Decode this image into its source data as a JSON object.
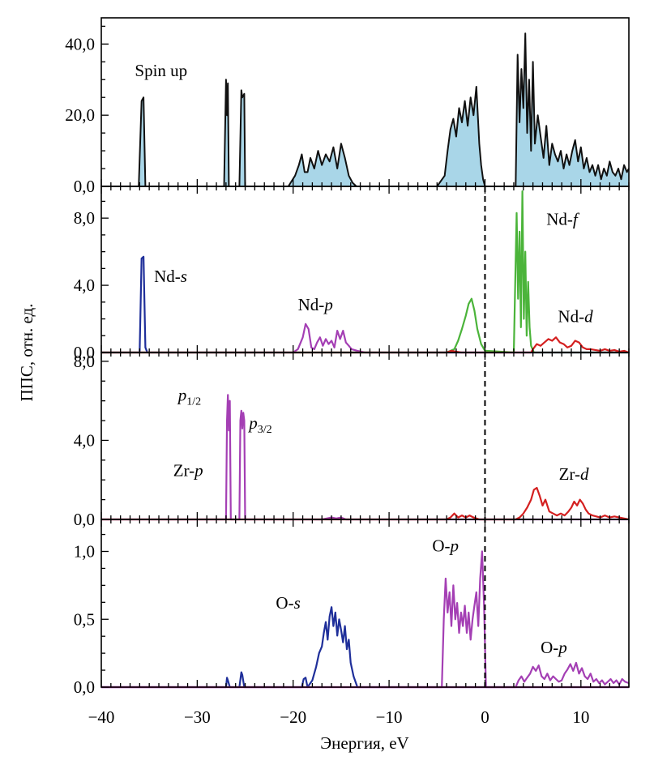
{
  "chart_data": {
    "type": "line",
    "xlabel": "Энергия, eV",
    "ylabel": "ППС, отн. ед.",
    "xlim": [
      -40,
      15
    ],
    "x_ticks": [
      -40,
      -30,
      -20,
      -10,
      0,
      10
    ],
    "x_tick_labels": [
      "−40",
      "−30",
      "−20",
      "−10",
      "0",
      "10"
    ],
    "fermi_level": 0,
    "colors": {
      "total": "#111111",
      "total_fill": "#a9d6e8",
      "s": "#1f2f9a",
      "p": "#a43fb4",
      "d": "#d42020",
      "f": "#4bb43a",
      "O-s": "#1f2f9a",
      "O-p": "#a43fb4",
      "baseline": "#d040b0"
    },
    "panels": [
      {
        "id": "total",
        "ylim": [
          0,
          46
        ],
        "y_ticks": [
          0,
          20,
          40
        ],
        "y_tick_labels": [
          "0,0",
          "20,0",
          "40,0"
        ],
        "annotations": [
          {
            "text": "Spin up",
            "x": -36.5,
            "y": 31
          }
        ],
        "series": [
          {
            "key": "total",
            "fill": true,
            "x": [
              -40,
              -36.1,
              -35.8,
              -35.6,
              -35.4,
              -35.1,
              -27.2,
              -27.0,
              -26.9,
              -26.8,
              -26.7,
              -26.5,
              -25.6,
              -25.4,
              -25.3,
              -25.1,
              -25.0,
              -24.8,
              -20.5,
              -19.8,
              -19.4,
              -19.1,
              -18.8,
              -18.5,
              -18.2,
              -17.8,
              -17.4,
              -17.0,
              -16.6,
              -16.2,
              -15.8,
              -15.4,
              -15.0,
              -14.6,
              -14.2,
              -13.8,
              -13.4,
              -13.0,
              -5.0,
              -4.2,
              -3.9,
              -3.6,
              -3.3,
              -3.0,
              -2.7,
              -2.4,
              -2.1,
              -1.8,
              -1.5,
              -1.2,
              -0.9,
              -0.6,
              -0.4,
              -0.2,
              0.0,
              0.2,
              3.2,
              3.4,
              3.6,
              3.8,
              4.0,
              4.2,
              4.4,
              4.6,
              4.8,
              5.0,
              5.2,
              5.5,
              5.8,
              6.1,
              6.4,
              6.7,
              7.0,
              7.3,
              7.6,
              7.9,
              8.2,
              8.5,
              8.8,
              9.1,
              9.4,
              9.7,
              10.0,
              10.3,
              10.6,
              10.9,
              11.2,
              11.5,
              11.8,
              12.1,
              12.4,
              12.7,
              13.0,
              13.3,
              13.6,
              13.9,
              14.2,
              14.5,
              14.8,
              15.0
            ],
            "values": [
              0,
              0,
              24,
              25,
              0,
              0,
              0,
              30,
              20,
              29,
              0,
              0,
              0,
              27,
              25,
              26,
              0,
              0,
              0,
              3,
              6,
              9,
              4,
              4,
              8,
              5,
              10,
              6,
              9,
              7,
              11,
              5,
              12,
              8,
              3,
              1,
              0,
              0,
              0,
              3,
              10,
              16,
              19,
              14,
              22,
              18,
              24,
              17,
              25,
              20,
              28,
              12,
              6,
              2,
              0,
              0,
              0,
              37,
              18,
              33,
              22,
              43,
              15,
              30,
              10,
              35,
              12,
              20,
              14,
              8,
              17,
              6,
              12,
              9,
              7,
              10,
              5,
              9,
              6,
              10,
              13,
              7,
              11,
              5,
              8,
              4,
              6,
              3,
              6,
              2,
              5,
              3,
              7,
              4,
              3,
              5,
              2,
              6,
              4,
              5
            ]
          }
        ]
      },
      {
        "id": "Nd",
        "ylim": [
          0,
          9.6
        ],
        "y_ticks": [
          0,
          4,
          8
        ],
        "y_tick_labels": [
          "0,0",
          "4,0",
          "8,0"
        ],
        "annotations": [
          {
            "parts": [
              {
                "t": "Nd-"
              },
              {
                "t": "s",
                "italic": true
              }
            ],
            "x": -34.5,
            "y": 4.2
          },
          {
            "parts": [
              {
                "t": "Nd-"
              },
              {
                "t": "p",
                "italic": true
              }
            ],
            "x": -19.5,
            "y": 2.5
          },
          {
            "parts": [
              {
                "t": "Nd-"
              },
              {
                "t": "f",
                "italic": true
              }
            ],
            "x": 6.4,
            "y": 7.6
          },
          {
            "parts": [
              {
                "t": "Nd-"
              },
              {
                "t": "d",
                "italic": true
              }
            ],
            "x": 7.6,
            "y": 1.8
          }
        ],
        "series": [
          {
            "key": "s",
            "x": [
              -40,
              -36.0,
              -35.8,
              -35.6,
              -35.4,
              -35.2,
              15
            ],
            "values": [
              0,
              0,
              5.6,
              5.7,
              0.3,
              0,
              0
            ]
          },
          {
            "key": "p",
            "x": [
              -40,
              -20.0,
              -19.5,
              -19.0,
              -18.7,
              -18.4,
              -18.1,
              -17.8,
              -17.5,
              -17.2,
              -16.9,
              -16.6,
              -16.3,
              -16.0,
              -15.7,
              -15.4,
              -15.1,
              -14.8,
              -14.5,
              -14.2,
              -13.9,
              -13.3,
              -12.5,
              15
            ],
            "values": [
              0,
              0,
              0.2,
              0.9,
              1.7,
              1.4,
              0.3,
              0.2,
              0.6,
              0.9,
              0.4,
              0.8,
              0.5,
              0.7,
              0.3,
              1.3,
              0.8,
              1.3,
              0.6,
              0.4,
              0.2,
              0.1,
              0,
              0
            ]
          },
          {
            "key": "f",
            "x": [
              -40,
              -4.0,
              -3.2,
              -2.8,
              -2.4,
              -2.0,
              -1.7,
              -1.4,
              -1.1,
              -0.8,
              -0.4,
              0.0,
              3.0,
              3.3,
              3.45,
              3.6,
              3.75,
              3.9,
              4.05,
              4.2,
              4.35,
              4.5,
              4.65,
              4.8,
              5.1,
              15
            ],
            "values": [
              0,
              0,
              0.2,
              0.7,
              1.4,
              2.2,
              2.9,
              3.2,
              2.5,
              1.4,
              0.5,
              0.1,
              0,
              8.3,
              3.2,
              7.2,
              1.5,
              9.6,
              2.0,
              6.0,
              1.0,
              4.2,
              1.5,
              0.4,
              0,
              0
            ]
          },
          {
            "key": "d",
            "x": [
              -40,
              -4.0,
              -3.5,
              -3.0,
              -2.5,
              0,
              4.8,
              5.0,
              5.4,
              5.8,
              6.2,
              6.6,
              7.0,
              7.4,
              7.8,
              8.2,
              8.6,
              9.0,
              9.4,
              9.8,
              10.2,
              10.6,
              11.0,
              11.5,
              12.0,
              12.5,
              13.0,
              13.5,
              14.0,
              14.5,
              15
            ],
            "values": [
              0,
              0,
              0.1,
              0.05,
              0,
              0,
              0,
              0.2,
              0.5,
              0.4,
              0.6,
              0.8,
              0.7,
              0.9,
              0.6,
              0.5,
              0.3,
              0.4,
              0.7,
              0.6,
              0.3,
              0.2,
              0.2,
              0.15,
              0.1,
              0.2,
              0.1,
              0.15,
              0.05,
              0.1,
              0
            ]
          }
        ]
      },
      {
        "id": "Zr",
        "ylim": [
          0,
          8.2
        ],
        "y_ticks": [
          0,
          4,
          8
        ],
        "y_tick_labels": [
          "0,0",
          "4,0",
          "8,0"
        ],
        "annotations": [
          {
            "parts": [
              {
                "t": "p",
                "italic": true
              },
              {
                "t": "1/2",
                "sub": true
              }
            ],
            "x": -32.0,
            "y": 6.0
          },
          {
            "parts": [
              {
                "t": "p",
                "italic": true
              },
              {
                "t": "3/2",
                "sub": true
              }
            ],
            "x": -24.6,
            "y": 4.6
          },
          {
            "parts": [
              {
                "t": "Zr-"
              },
              {
                "t": "p",
                "italic": true
              }
            ],
            "x": -32.5,
            "y": 2.2
          },
          {
            "parts": [
              {
                "t": "Zr-"
              },
              {
                "t": "d",
                "italic": true
              }
            ],
            "x": 7.7,
            "y": 2.0
          }
        ],
        "series": [
          {
            "key": "p",
            "x": [
              -40,
              -27.0,
              -26.9,
              -26.8,
              -26.7,
              -26.6,
              -26.5,
              -25.6,
              -25.5,
              -25.4,
              -25.3,
              -25.2,
              -25.1,
              -25.0,
              -17.0,
              -16.5,
              -16.0,
              -15.5,
              -15.0,
              -14.5,
              15
            ],
            "values": [
              0,
              0,
              5.0,
              6.3,
              4.5,
              6.0,
              0,
              0,
              5.0,
              5.5,
              4.6,
              5.4,
              5.0,
              0,
              0,
              0.05,
              0.1,
              0.05,
              0.1,
              0,
              0
            ]
          },
          {
            "key": "d",
            "x": [
              -40,
              -4.0,
              -3.6,
              -3.2,
              -2.8,
              -2.4,
              -2.0,
              -1.6,
              -1.2,
              -0.6,
              3.2,
              3.6,
              4.0,
              4.4,
              4.8,
              5.1,
              5.4,
              5.7,
              6.0,
              6.3,
              6.7,
              7.1,
              7.5,
              7.9,
              8.3,
              8.7,
              9.0,
              9.3,
              9.6,
              9.9,
              10.2,
              10.5,
              10.8,
              11.2,
              11.6,
              12.0,
              12.5,
              13.0,
              13.5,
              14.0,
              14.5,
              15
            ],
            "values": [
              0,
              0,
              0.1,
              0.3,
              0.1,
              0.2,
              0.1,
              0.2,
              0.1,
              0,
              0,
              0.1,
              0.3,
              0.6,
              1.0,
              1.5,
              1.6,
              1.2,
              0.7,
              1.0,
              0.4,
              0.3,
              0.2,
              0.3,
              0.2,
              0.4,
              0.6,
              0.9,
              0.7,
              1.0,
              0.8,
              0.5,
              0.3,
              0.2,
              0.15,
              0.1,
              0.2,
              0.1,
              0.15,
              0.1,
              0.05,
              0
            ]
          }
        ]
      },
      {
        "id": "O",
        "ylim": [
          0,
          1.2
        ],
        "y_ticks": [
          0,
          0.5,
          1.0
        ],
        "y_tick_labels": [
          "0,0",
          "0,5",
          "1,0"
        ],
        "annotations": [
          {
            "parts": [
              {
                "t": "O-"
              },
              {
                "t": "s",
                "italic": true
              }
            ],
            "x": -21.8,
            "y": 0.58
          },
          {
            "parts": [
              {
                "t": "O-"
              },
              {
                "t": "p",
                "italic": true
              }
            ],
            "x": -5.5,
            "y": 1.0
          },
          {
            "parts": [
              {
                "t": "O-"
              },
              {
                "t": "p",
                "italic": true
              }
            ],
            "x": 5.8,
            "y": 0.25
          }
        ],
        "series": [
          {
            "key": "O-s",
            "x": [
              -40,
              -27.0,
              -26.9,
              -26.8,
              -26.6,
              -25.6,
              -25.4,
              -25.3,
              -25.1,
              -19.1,
              -18.9,
              -18.7,
              -18.5,
              -18.0,
              -17.6,
              -17.3,
              -17.0,
              -16.8,
              -16.6,
              -16.4,
              -16.2,
              -16.0,
              -15.8,
              -15.6,
              -15.4,
              -15.2,
              -15.0,
              -14.8,
              -14.6,
              -14.4,
              -14.2,
              -14.0,
              -13.7,
              -13.3,
              15
            ],
            "values": [
              0,
              0,
              0.07,
              0.05,
              0,
              0,
              0.11,
              0.09,
              0,
              0,
              0.06,
              0.07,
              0,
              0.05,
              0.15,
              0.25,
              0.3,
              0.4,
              0.48,
              0.35,
              0.52,
              0.59,
              0.45,
              0.55,
              0.38,
              0.5,
              0.42,
              0.33,
              0.45,
              0.28,
              0.35,
              0.18,
              0.08,
              0,
              0
            ]
          },
          {
            "key": "O-p",
            "x": [
              -40,
              -4.5,
              -4.3,
              -4.1,
              -3.9,
              -3.7,
              -3.5,
              -3.3,
              -3.1,
              -2.9,
              -2.7,
              -2.5,
              -2.3,
              -2.1,
              -1.9,
              -1.7,
              -1.5,
              -1.3,
              -1.1,
              -0.9,
              -0.7,
              -0.5,
              -0.3,
              -0.1,
              0.0,
              0.1,
              3.2,
              3.5,
              3.8,
              4.1,
              4.4,
              4.7,
              5.0,
              5.3,
              5.6,
              5.9,
              6.2,
              6.5,
              6.8,
              7.1,
              7.4,
              7.7,
              8.0,
              8.3,
              8.6,
              8.9,
              9.2,
              9.5,
              9.8,
              10.1,
              10.4,
              10.7,
              11.0,
              11.3,
              11.6,
              11.9,
              12.2,
              12.5,
              12.8,
              13.1,
              13.4,
              13.7,
              14.0,
              14.3,
              14.6,
              15.0
            ],
            "values": [
              0,
              0,
              0.5,
              0.8,
              0.55,
              0.7,
              0.45,
              0.75,
              0.5,
              0.62,
              0.4,
              0.55,
              0.45,
              0.6,
              0.4,
              0.55,
              0.35,
              0.5,
              0.6,
              0.7,
              0.45,
              0.8,
              1.0,
              0.6,
              0.3,
              0,
              0,
              0.05,
              0.08,
              0.04,
              0.07,
              0.1,
              0.15,
              0.12,
              0.16,
              0.08,
              0.06,
              0.1,
              0.05,
              0.08,
              0.06,
              0.04,
              0.05,
              0.1,
              0.13,
              0.17,
              0.12,
              0.18,
              0.1,
              0.14,
              0.08,
              0.06,
              0.1,
              0.04,
              0.06,
              0.03,
              0.05,
              0.02,
              0.04,
              0.06,
              0.03,
              0.05,
              0.02,
              0.06,
              0.04,
              0.03
            ]
          },
          {
            "key": "baseline",
            "x": [
              -40,
              15
            ],
            "values": [
              0,
              0
            ]
          }
        ]
      }
    ]
  }
}
